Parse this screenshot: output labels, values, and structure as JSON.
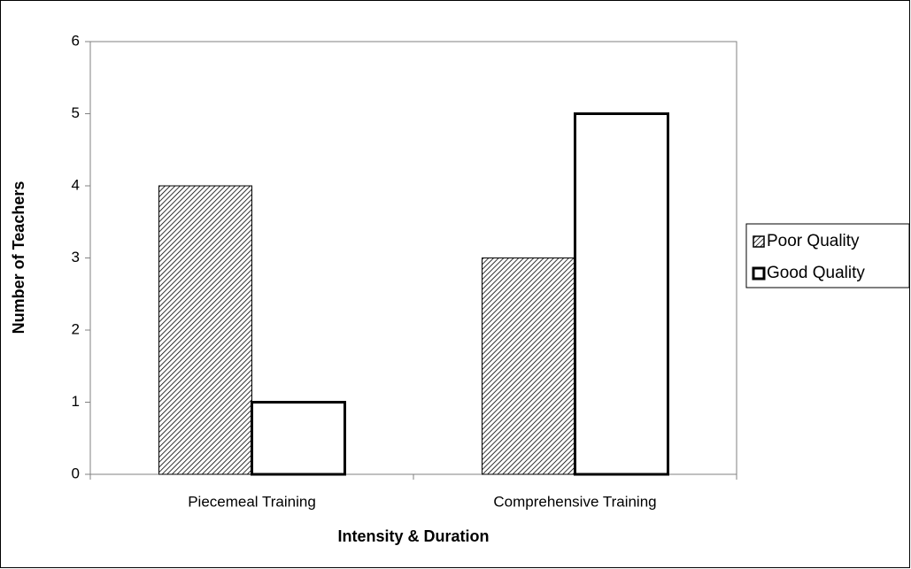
{
  "chart_data": {
    "type": "bar",
    "x_label": "Intensity & Duration",
    "y_label": "Number of Teachers",
    "categories": [
      "Piecemeal Training",
      "Comprehensive Training"
    ],
    "series": [
      {
        "name": "Poor Quality",
        "color": "#000000",
        "pattern": "hatch",
        "values": [
          4,
          3
        ]
      },
      {
        "name": "Good Quality",
        "color": "#ffffff",
        "pattern": "solid",
        "values": [
          1,
          5
        ]
      }
    ],
    "ylim": [
      0,
      6
    ],
    "yticks": [
      0,
      1,
      2,
      3,
      4,
      5,
      6
    ],
    "grid": false,
    "legend": "right"
  }
}
